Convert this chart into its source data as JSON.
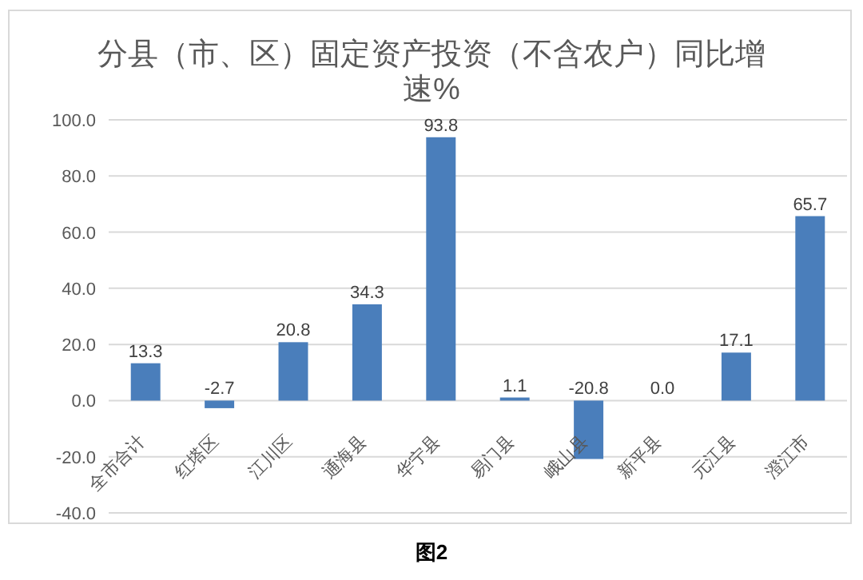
{
  "chart_data": {
    "type": "bar",
    "title": "分县（市、区）固定资产投资（不含农户）同比增速%",
    "categories": [
      "全市合计",
      "红塔区",
      "江川区",
      "通海县",
      "华宁县",
      "易门县",
      "峨山县",
      "新平县",
      "元江县",
      "澄江市"
    ],
    "values": [
      13.3,
      -2.7,
      20.8,
      34.3,
      93.8,
      1.1,
      -20.8,
      0.0,
      17.1,
      65.7
    ],
    "value_labels": [
      "13.3",
      "-2.7",
      "20.8",
      "34.3",
      "93.8",
      "1.1",
      "-20.8",
      "0.0",
      "17.1",
      "65.7"
    ],
    "color": "#4a7ebb",
    "ylim": [
      -40,
      100
    ],
    "yticks": [
      {
        "value": -40,
        "label": "-40.0"
      },
      {
        "value": -20,
        "label": "-20.0"
      },
      {
        "value": 0,
        "label": "0.0"
      },
      {
        "value": 20,
        "label": "20.0"
      },
      {
        "value": 40,
        "label": "40.0"
      },
      {
        "value": 60,
        "label": "60.0"
      },
      {
        "value": 80,
        "label": "80.0"
      },
      {
        "value": 100,
        "label": "100.0"
      }
    ],
    "grid": "y",
    "annotations": [
      "图2"
    ]
  }
}
